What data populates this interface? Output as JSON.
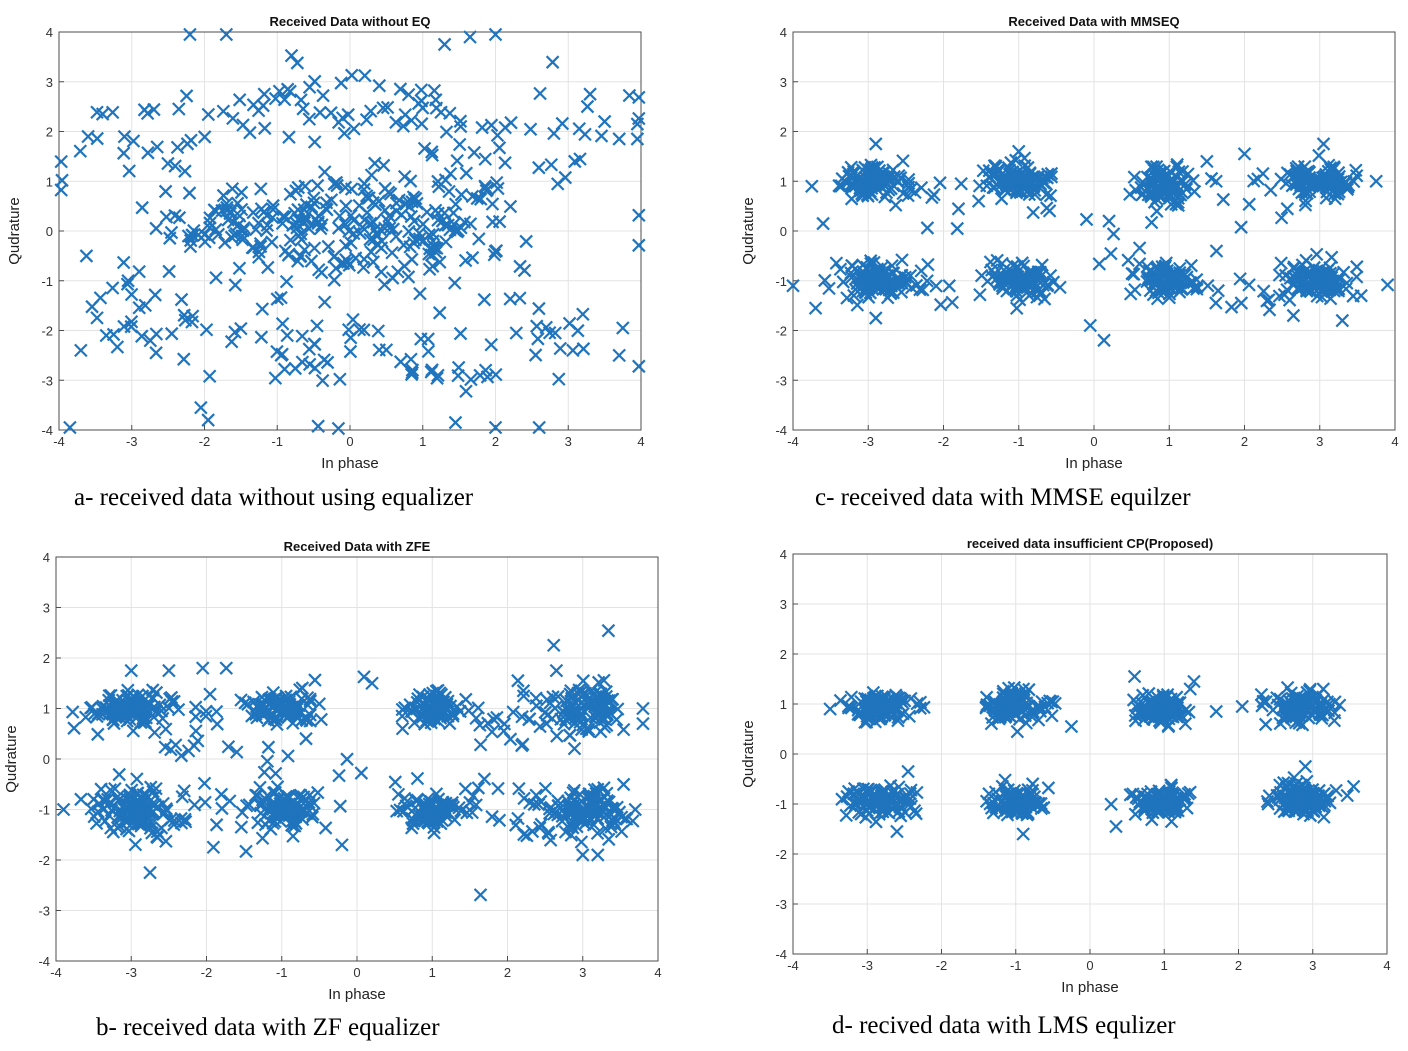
{
  "figure": {
    "captions": {
      "a": "a- received data without using equalizer",
      "b": "b- received data with ZF equalizer",
      "c": "c- received data with MMSE equilzer",
      "d": "d- recived data with LMS equlizer"
    }
  },
  "chart_data": [
    {
      "id": "a",
      "type": "scatter",
      "title": "Received Data without EQ",
      "xlabel": "In phase",
      "ylabel": "Qudrature",
      "xlim": [
        -4,
        4
      ],
      "ylim": [
        -4,
        4
      ],
      "xticks": [
        -4,
        -3,
        -2,
        -1,
        0,
        1,
        2,
        3,
        4
      ],
      "yticks": [
        -4,
        -3,
        -2,
        -1,
        0,
        1,
        2,
        3,
        4
      ],
      "grid": true,
      "marker": "x",
      "color": "#1f74bd",
      "clusters": [
        {
          "center": [
            -1.6,
            0.2
          ],
          "spread": [
            0.5,
            0.45
          ],
          "count": 60
        },
        {
          "center": [
            -0.6,
            0.1
          ],
          "spread": [
            0.55,
            0.5
          ],
          "count": 70
        },
        {
          "center": [
            0.4,
            0.2
          ],
          "spread": [
            0.5,
            0.5
          ],
          "count": 60
        },
        {
          "center": [
            1.4,
            0.1
          ],
          "spread": [
            0.5,
            0.5
          ],
          "count": 60
        },
        {
          "center": [
            -2.7,
            -1.8
          ],
          "spread": [
            0.5,
            0.4
          ],
          "count": 22
        },
        {
          "center": [
            -0.3,
            -2.2
          ],
          "spread": [
            0.6,
            0.5
          ],
          "count": 30
        },
        {
          "center": [
            1.0,
            -2.6
          ],
          "spread": [
            0.5,
            0.3
          ],
          "count": 18
        },
        {
          "center": [
            2.7,
            -2.0
          ],
          "spread": [
            0.5,
            0.4
          ],
          "count": 18
        },
        {
          "center": [
            -2.5,
            1.9
          ],
          "spread": [
            0.6,
            0.4
          ],
          "count": 26
        },
        {
          "center": [
            -1.0,
            2.5
          ],
          "spread": [
            0.6,
            0.4
          ],
          "count": 28
        },
        {
          "center": [
            0.8,
            2.3
          ],
          "spread": [
            0.5,
            0.4
          ],
          "count": 24
        },
        {
          "center": [
            2.5,
            1.8
          ],
          "spread": [
            0.6,
            0.4
          ],
          "count": 22
        },
        {
          "center": [
            0.0,
            0.0
          ],
          "spread": [
            2.2,
            2.0
          ],
          "count": 80
        }
      ],
      "points": [
        [
          -3.85,
          -3.95
        ],
        [
          -3.7,
          -2.4
        ],
        [
          2.0,
          -3.95
        ],
        [
          2.6,
          -3.95
        ],
        [
          -1.95,
          -3.8
        ],
        [
          1.45,
          -3.85
        ],
        [
          -2.05,
          -3.55
        ],
        [
          -2.2,
          3.95
        ],
        [
          -1.7,
          3.95
        ],
        [
          2.0,
          3.95
        ],
        [
          1.65,
          3.9
        ],
        [
          1.3,
          3.75
        ],
        [
          -3.4,
          2.35
        ],
        [
          3.95,
          2.15
        ],
        [
          3.95,
          1.85
        ],
        [
          3.7,
          1.85
        ],
        [
          3.5,
          2.2
        ],
        [
          3.3,
          2.75
        ],
        [
          3.7,
          -2.5
        ],
        [
          3.75,
          -1.95
        ],
        [
          -3.35,
          -2.1
        ],
        [
          -3.05,
          -1.0
        ],
        [
          -3.6,
          1.9
        ]
      ]
    },
    {
      "id": "b",
      "type": "scatter",
      "title": "Received Data with ZFE",
      "xlabel": "In phase",
      "ylabel": "Qudrature",
      "xlim": [
        -4,
        4
      ],
      "ylim": [
        -4,
        4
      ],
      "xticks": [
        -4,
        -3,
        -2,
        -1,
        0,
        1,
        2,
        3,
        4
      ],
      "yticks": [
        -4,
        -3,
        -2,
        -1,
        0,
        1,
        2,
        3,
        4
      ],
      "grid": true,
      "marker": "x",
      "color": "#1f74bd",
      "clusters": [
        {
          "center": [
            -3.05,
            1.0
          ],
          "spread": [
            0.22,
            0.17
          ],
          "count": 110
        },
        {
          "center": [
            -1.0,
            1.0
          ],
          "spread": [
            0.22,
            0.15
          ],
          "count": 100
        },
        {
          "center": [
            1.0,
            1.0
          ],
          "spread": [
            0.18,
            0.18
          ],
          "count": 90
        },
        {
          "center": [
            3.05,
            1.0
          ],
          "spread": [
            0.25,
            0.22
          ],
          "count": 100
        },
        {
          "center": [
            -3.05,
            -1.0
          ],
          "spread": [
            0.24,
            0.22
          ],
          "count": 100
        },
        {
          "center": [
            -1.0,
            -1.0
          ],
          "spread": [
            0.22,
            0.18
          ],
          "count": 100
        },
        {
          "center": [
            1.0,
            -1.05
          ],
          "spread": [
            0.2,
            0.15
          ],
          "count": 90
        },
        {
          "center": [
            3.05,
            -1.0
          ],
          "spread": [
            0.28,
            0.22
          ],
          "count": 100
        },
        {
          "center": [
            -2.3,
            0.8
          ],
          "spread": [
            0.4,
            0.35
          ],
          "count": 28
        },
        {
          "center": [
            2.3,
            0.6
          ],
          "spread": [
            0.4,
            0.35
          ],
          "count": 28
        },
        {
          "center": [
            -2.4,
            -1.1
          ],
          "spread": [
            0.4,
            0.4
          ],
          "count": 28
        },
        {
          "center": [
            2.4,
            -1.2
          ],
          "spread": [
            0.4,
            0.4
          ],
          "count": 30
        },
        {
          "center": [
            0.0,
            0.0
          ],
          "spread": [
            1.7,
            1.0
          ],
          "count": 36
        }
      ],
      "points": [
        [
          -3.9,
          -1.0
        ],
        [
          -2.75,
          -2.25
        ],
        [
          -3.0,
          1.75
        ],
        [
          -2.5,
          1.75
        ],
        [
          -2.05,
          1.8
        ],
        [
          2.65,
          1.75
        ],
        [
          3.0,
          -1.9
        ],
        [
          3.2,
          -1.9
        ],
        [
          -0.2,
          -1.7
        ],
        [
          0.2,
          1.5
        ],
        [
          0.55,
          -0.7
        ],
        [
          3.8,
          0.7
        ],
        [
          3.8,
          1.0
        ]
      ]
    },
    {
      "id": "c",
      "type": "scatter",
      "title": "Received Data with MMSEQ",
      "xlabel": "In phase",
      "ylabel": "Qudrature",
      "xlim": [
        -4,
        4
      ],
      "ylim": [
        -4,
        4
      ],
      "xticks": [
        -4,
        -3,
        -2,
        -1,
        0,
        1,
        2,
        3,
        4
      ],
      "yticks": [
        -4,
        -3,
        -2,
        -1,
        0,
        1,
        2,
        3,
        4
      ],
      "grid": true,
      "marker": "x",
      "color": "#1f74bd",
      "clusters": [
        {
          "center": [
            -2.95,
            1.0
          ],
          "spread": [
            0.22,
            0.16
          ],
          "count": 110
        },
        {
          "center": [
            -1.0,
            1.0
          ],
          "spread": [
            0.22,
            0.16
          ],
          "count": 100
        },
        {
          "center": [
            0.95,
            0.9
          ],
          "spread": [
            0.18,
            0.22
          ],
          "count": 100
        },
        {
          "center": [
            3.0,
            1.0
          ],
          "spread": [
            0.22,
            0.16
          ],
          "count": 110
        },
        {
          "center": [
            -2.95,
            -1.0
          ],
          "spread": [
            0.22,
            0.18
          ],
          "count": 110
        },
        {
          "center": [
            -1.0,
            -1.0
          ],
          "spread": [
            0.22,
            0.16
          ],
          "count": 100
        },
        {
          "center": [
            0.95,
            -1.0
          ],
          "spread": [
            0.2,
            0.15
          ],
          "count": 90
        },
        {
          "center": [
            3.0,
            -1.0
          ],
          "spread": [
            0.22,
            0.2
          ],
          "count": 110
        },
        {
          "center": [
            -2.3,
            0.7
          ],
          "spread": [
            0.35,
            0.3
          ],
          "count": 14
        },
        {
          "center": [
            -2.3,
            -1.2
          ],
          "spread": [
            0.35,
            0.3
          ],
          "count": 14
        },
        {
          "center": [
            2.3,
            0.7
          ],
          "spread": [
            0.35,
            0.3
          ],
          "count": 14
        },
        {
          "center": [
            2.3,
            -1.1
          ],
          "spread": [
            0.35,
            0.3
          ],
          "count": 14
        },
        {
          "center": [
            0.0,
            0.0
          ],
          "spread": [
            1.0,
            0.9
          ],
          "count": 20
        }
      ],
      "points": [
        [
          -4.0,
          -1.1
        ],
        [
          -3.7,
          -1.55
        ],
        [
          -3.6,
          0.15
        ],
        [
          -3.75,
          0.9
        ],
        [
          -2.9,
          1.75
        ],
        [
          -1.0,
          1.6
        ],
        [
          -0.05,
          -1.9
        ],
        [
          0.2,
          0.2
        ],
        [
          1.5,
          1.4
        ],
        [
          1.65,
          -1.2
        ],
        [
          2.0,
          1.55
        ],
        [
          3.05,
          1.75
        ],
        [
          3.75,
          1.0
        ],
        [
          3.55,
          -1.3
        ],
        [
          -2.9,
          -1.75
        ],
        [
          2.65,
          -1.7
        ],
        [
          3.3,
          -1.8
        ]
      ]
    },
    {
      "id": "d",
      "type": "scatter",
      "title": "received data insufficient CP(Proposed)",
      "xlabel": "In phase",
      "ylabel": "Qudrature",
      "xlim": [
        -4,
        4
      ],
      "ylim": [
        -4,
        4
      ],
      "xticks": [
        -4,
        -3,
        -2,
        -1,
        0,
        1,
        2,
        3,
        4
      ],
      "yticks": [
        -4,
        -3,
        -2,
        -1,
        0,
        1,
        2,
        3,
        4
      ],
      "grid": true,
      "marker": "x",
      "color": "#1f74bd",
      "clusters": [
        {
          "center": [
            -2.85,
            0.92
          ],
          "spread": [
            0.22,
            0.15
          ],
          "count": 110
        },
        {
          "center": [
            -1.0,
            0.95
          ],
          "spread": [
            0.2,
            0.15
          ],
          "count": 100
        },
        {
          "center": [
            0.95,
            0.9
          ],
          "spread": [
            0.18,
            0.15
          ],
          "count": 100
        },
        {
          "center": [
            2.85,
            0.92
          ],
          "spread": [
            0.22,
            0.17
          ],
          "count": 110
        },
        {
          "center": [
            -2.85,
            -0.95
          ],
          "spread": [
            0.22,
            0.15
          ],
          "count": 110
        },
        {
          "center": [
            -0.98,
            -1.0
          ],
          "spread": [
            0.18,
            0.15
          ],
          "count": 100
        },
        {
          "center": [
            0.92,
            -0.95
          ],
          "spread": [
            0.2,
            0.15
          ],
          "count": 100
        },
        {
          "center": [
            2.85,
            -0.95
          ],
          "spread": [
            0.22,
            0.18
          ],
          "count": 110
        }
      ],
      "points": [
        [
          -3.5,
          0.9
        ],
        [
          -2.45,
          -0.35
        ],
        [
          -0.25,
          0.55
        ],
        [
          0.35,
          -1.45
        ],
        [
          0.6,
          1.55
        ],
        [
          1.4,
          1.45
        ],
        [
          1.7,
          0.85
        ],
        [
          2.05,
          0.95
        ],
        [
          3.55,
          -0.65
        ],
        [
          2.9,
          -0.25
        ],
        [
          -0.9,
          -1.6
        ],
        [
          -2.6,
          -1.55
        ],
        [
          1.35,
          1.3
        ]
      ]
    }
  ]
}
